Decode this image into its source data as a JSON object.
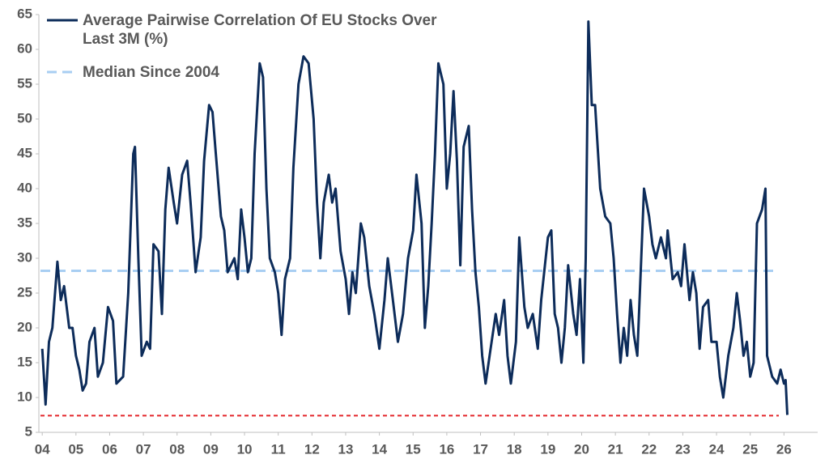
{
  "chart_data": {
    "type": "line",
    "xlim": [
      2003.9,
      2027
    ],
    "ylim": [
      5,
      65
    ],
    "yticks": [
      5,
      10,
      15,
      20,
      25,
      30,
      35,
      40,
      45,
      50,
      55,
      60,
      65
    ],
    "xticks": [
      {
        "value": 2004,
        "label": "04"
      },
      {
        "value": 2005,
        "label": "05"
      },
      {
        "value": 2006,
        "label": "06"
      },
      {
        "value": 2007,
        "label": "07"
      },
      {
        "value": 2008,
        "label": "08"
      },
      {
        "value": 2009,
        "label": "09"
      },
      {
        "value": 2010,
        "label": "10"
      },
      {
        "value": 2011,
        "label": "11"
      },
      {
        "value": 2012,
        "label": "12"
      },
      {
        "value": 2013,
        "label": "13"
      },
      {
        "value": 2014,
        "label": "14"
      },
      {
        "value": 2015,
        "label": "15"
      },
      {
        "value": 2016,
        "label": "16"
      },
      {
        "value": 2017,
        "label": "17"
      },
      {
        "value": 2018,
        "label": "18"
      },
      {
        "value": 2019,
        "label": "19"
      },
      {
        "value": 2020,
        "label": "20"
      },
      {
        "value": 2021,
        "label": "21"
      },
      {
        "value": 2022,
        "label": "22"
      },
      {
        "value": 2023,
        "label": "23"
      },
      {
        "value": 2024,
        "label": "24"
      },
      {
        "value": 2025,
        "label": "25"
      },
      {
        "value": 2026,
        "label": "26"
      }
    ],
    "series": [
      {
        "name": "Average Pairwise Correlation Of EU Stocks Over Last 3M (%)",
        "color": "#0d2c5a",
        "x": [
          2004.0,
          2004.1,
          2004.2,
          2004.3,
          2004.45,
          2004.55,
          2004.65,
          2004.8,
          2004.9,
          2005.0,
          2005.1,
          2005.2,
          2005.3,
          2005.4,
          2005.55,
          2005.65,
          2005.8,
          2005.95,
          2006.1,
          2006.2,
          2006.4,
          2006.55,
          2006.7,
          2006.75,
          2006.85,
          2006.95,
          2007.1,
          2007.2,
          2007.3,
          2007.45,
          2007.55,
          2007.65,
          2007.75,
          2007.9,
          2008.0,
          2008.15,
          2008.3,
          2008.4,
          2008.55,
          2008.7,
          2008.8,
          2008.95,
          2009.05,
          2009.15,
          2009.3,
          2009.4,
          2009.5,
          2009.7,
          2009.8,
          2009.9,
          2010.0,
          2010.1,
          2010.2,
          2010.3,
          2010.45,
          2010.55,
          2010.65,
          2010.75,
          2010.9,
          2011.0,
          2011.1,
          2011.2,
          2011.35,
          2011.45,
          2011.6,
          2011.75,
          2011.9,
          2012.05,
          2012.15,
          2012.25,
          2012.35,
          2012.5,
          2012.6,
          2012.7,
          2012.85,
          2013.0,
          2013.1,
          2013.2,
          2013.3,
          2013.45,
          2013.55,
          2013.7,
          2013.85,
          2014.0,
          2014.15,
          2014.25,
          2014.4,
          2014.55,
          2014.7,
          2014.85,
          2015.0,
          2015.1,
          2015.25,
          2015.35,
          2015.45,
          2015.55,
          2015.65,
          2015.75,
          2015.9,
          2016.0,
          2016.1,
          2016.2,
          2016.3,
          2016.4,
          2016.5,
          2016.65,
          2016.75,
          2016.85,
          2016.95,
          2017.05,
          2017.15,
          2017.3,
          2017.45,
          2017.55,
          2017.7,
          2017.8,
          2017.9,
          2018.05,
          2018.15,
          2018.3,
          2018.4,
          2018.55,
          2018.7,
          2018.8,
          2019.0,
          2019.1,
          2019.2,
          2019.3,
          2019.4,
          2019.5,
          2019.6,
          2019.75,
          2019.85,
          2019.95,
          2020.05,
          2020.12,
          2020.2,
          2020.3,
          2020.4,
          2020.55,
          2020.7,
          2020.85,
          2020.95,
          2021.05,
          2021.15,
          2021.25,
          2021.35,
          2021.45,
          2021.55,
          2021.65,
          2021.75,
          2021.85,
          2022.0,
          2022.1,
          2022.2,
          2022.35,
          2022.5,
          2022.55,
          2022.7,
          2022.85,
          2022.95,
          2023.05,
          2023.2,
          2023.3,
          2023.4,
          2023.5,
          2023.6,
          2023.75,
          2023.85,
          2024.0,
          2024.1,
          2024.2,
          2024.35,
          2024.5,
          2024.6,
          2024.7,
          2024.8,
          2024.9,
          2025.0,
          2025.1,
          2025.2,
          2025.35,
          2025.45,
          2025.5,
          2025.65,
          2025.8,
          2025.9,
          2026.0,
          2026.05,
          2026.1
        ],
        "values": [
          17,
          9,
          18,
          20,
          29.5,
          24,
          26,
          20,
          20,
          16,
          14,
          11,
          12,
          18,
          20,
          13,
          15,
          23,
          21,
          12,
          13,
          25,
          45,
          46,
          30,
          16,
          18,
          17,
          32,
          31,
          22,
          37,
          43,
          38,
          35,
          42,
          44,
          38,
          28,
          33,
          44,
          52,
          51,
          45,
          36,
          34,
          28,
          30,
          27,
          37,
          33,
          28,
          30,
          45,
          58,
          56,
          40,
          30,
          28,
          25,
          19,
          27,
          30,
          43,
          55,
          59,
          58,
          50,
          38,
          30,
          38,
          42,
          38,
          40,
          31,
          27,
          22,
          28,
          25,
          35,
          33,
          26,
          22,
          17,
          24,
          30,
          24,
          18,
          22,
          30,
          34,
          42,
          35,
          20,
          26,
          35,
          45,
          58,
          55,
          40,
          45,
          54,
          44,
          29,
          46,
          49,
          37,
          28,
          23,
          16,
          12,
          17,
          22,
          19,
          24,
          16,
          12,
          18,
          33,
          23,
          20,
          22,
          17,
          24,
          33,
          34,
          22,
          20,
          15,
          20,
          29,
          22,
          19,
          27,
          15,
          30,
          64,
          52,
          52,
          40,
          36,
          35,
          30,
          22,
          15,
          20,
          16,
          24,
          19,
          16,
          28,
          40,
          36,
          32,
          30,
          33,
          30,
          34,
          27,
          28,
          26,
          32,
          24,
          28,
          25,
          17,
          23,
          24,
          18,
          18,
          13,
          10,
          16,
          20,
          25,
          21,
          16,
          18,
          13,
          15,
          35,
          37,
          40,
          16,
          13,
          12,
          14,
          12,
          12.5,
          7.5
        ]
      }
    ],
    "reference_lines": [
      {
        "name": "Median Since 2004",
        "value": 28.2,
        "color": "#a8cef2"
      },
      {
        "value": 7.4,
        "color": "#e3262b"
      }
    ]
  }
}
